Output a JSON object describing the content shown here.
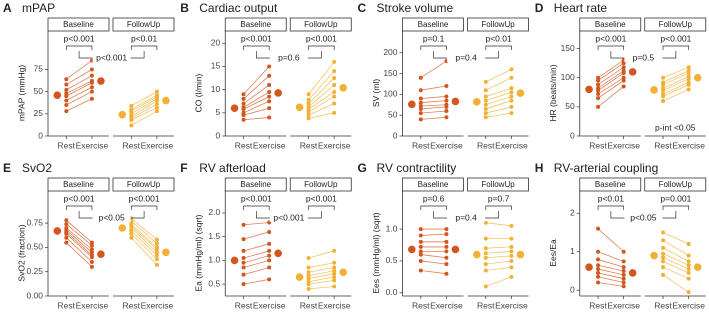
{
  "chart_data": [
    {
      "type": "paired",
      "panel_label": "A",
      "title": "mPAP",
      "ylabel": "mPAP (mmHg)",
      "categories": [
        "Rest",
        "Exercise"
      ],
      "ylim": [
        0,
        115
      ],
      "yticks": [
        0,
        25,
        50,
        75
      ],
      "between": "p<0.001",
      "facets": [
        {
          "name": "Baseline",
          "color": "#d4561f",
          "within": "p<0.001",
          "rest": [
            28,
            35,
            40,
            45,
            48,
            52,
            58,
            64
          ],
          "exercise": [
            42,
            50,
            55,
            60,
            62,
            68,
            75,
            85
          ],
          "means": [
            46,
            62
          ]
        },
        {
          "name": "FollowUp",
          "color": "#f0b136",
          "within": "p<0.01",
          "rest": [
            12,
            18,
            20,
            22,
            25,
            28,
            30,
            34
          ],
          "exercise": [
            28,
            32,
            36,
            40,
            42,
            44,
            46,
            50
          ],
          "means": [
            24,
            40
          ]
        }
      ]
    },
    {
      "type": "paired",
      "panel_label": "B",
      "title": "Cardiac output",
      "ylabel": "CO (l/min)",
      "categories": [
        "Rest",
        "Exercise"
      ],
      "ylim": [
        0,
        22
      ],
      "yticks": [
        0,
        5,
        10,
        15,
        20
      ],
      "between": "p=0.6",
      "facets": [
        {
          "name": "Baseline",
          "color": "#d4561f",
          "within": "p<0.001",
          "rest": [
            3.5,
            4.5,
            5,
            5.8,
            6.2,
            7,
            8,
            9
          ],
          "exercise": [
            4,
            6,
            7.5,
            8.5,
            9.5,
            11,
            13,
            15
          ],
          "means": [
            6,
            9.3
          ]
        },
        {
          "name": "FollowUp",
          "color": "#f0b136",
          "within": "p<0.001",
          "rest": [
            3.8,
            4.5,
            5.2,
            5.8,
            6.3,
            7,
            7.8,
            9
          ],
          "exercise": [
            5,
            7,
            8.5,
            9.5,
            11,
            12.5,
            14,
            16
          ],
          "means": [
            6.2,
            10.4
          ]
        }
      ]
    },
    {
      "type": "paired",
      "panel_label": "C",
      "title": "Stroke volume",
      "ylabel": "SV (ml)",
      "categories": [
        "Rest",
        "Exercise"
      ],
      "ylim": [
        0,
        245
      ],
      "yticks": [
        0,
        50,
        100,
        150,
        200
      ],
      "between": "p=0.4",
      "facets": [
        {
          "name": "Baseline",
          "color": "#d4561f",
          "within": "p=0.1",
          "rest": [
            40,
            55,
            65,
            72,
            80,
            90,
            110,
            140
          ],
          "exercise": [
            45,
            60,
            70,
            75,
            85,
            95,
            120,
            180
          ],
          "means": [
            76,
            83
          ]
        },
        {
          "name": "FollowUp",
          "color": "#f0b136",
          "within": "p<0.01",
          "rest": [
            45,
            55,
            65,
            75,
            85,
            95,
            110,
            130
          ],
          "exercise": [
            55,
            70,
            85,
            95,
            105,
            115,
            140,
            160
          ],
          "means": [
            82,
            103
          ]
        }
      ]
    },
    {
      "type": "paired",
      "panel_label": "D",
      "title": "Heart rate",
      "ylabel": "HR (beats/min)",
      "categories": [
        "Rest",
        "Exercise"
      ],
      "ylim": [
        0,
        175
      ],
      "yticks": [
        0,
        50,
        100,
        150
      ],
      "between": "p=0.5",
      "note": "p-int <0.05",
      "facets": [
        {
          "name": "Baseline",
          "color": "#d4561f",
          "within": "p<0.001",
          "rest": [
            50,
            65,
            72,
            78,
            82,
            88,
            95,
            100
          ],
          "exercise": [
            85,
            95,
            100,
            108,
            112,
            118,
            125,
            130
          ],
          "means": [
            80,
            110
          ]
        },
        {
          "name": "FollowUp",
          "color": "#f0b136",
          "within": "p<0.001",
          "rest": [
            60,
            68,
            72,
            78,
            82,
            88,
            92,
            100
          ],
          "exercise": [
            80,
            88,
            92,
            98,
            102,
            108,
            112,
            118
          ],
          "means": [
            79,
            100
          ]
        }
      ]
    },
    {
      "type": "paired",
      "panel_label": "E",
      "title": "SvO2",
      "ylabel": "SvO2 (fraction)",
      "categories": [
        "Rest",
        "Exercise"
      ],
      "ylim": [
        0,
        1.05
      ],
      "yticks": [
        {
          "value": 0,
          "label": "0.00"
        },
        0.25,
        {
          "value": 0.5,
          "label": "0.50"
        },
        0.75
      ],
      "between": "p<0.05",
      "facets": [
        {
          "name": "Baseline",
          "color": "#d4561f",
          "within": "p<0.001",
          "rest": [
            0.55,
            0.6,
            0.64,
            0.66,
            0.68,
            0.7,
            0.74,
            0.78
          ],
          "exercise": [
            0.3,
            0.35,
            0.4,
            0.42,
            0.45,
            0.48,
            0.52,
            0.55
          ],
          "means": [
            0.67,
            0.43
          ]
        },
        {
          "name": "FollowUp",
          "color": "#f0b136",
          "within": "p<0.001",
          "rest": [
            0.6,
            0.64,
            0.67,
            0.7,
            0.72,
            0.74,
            0.77,
            0.8
          ],
          "exercise": [
            0.32,
            0.38,
            0.42,
            0.45,
            0.48,
            0.5,
            0.54,
            0.58
          ],
          "means": [
            0.7,
            0.45
          ]
        }
      ]
    },
    {
      "type": "paired",
      "panel_label": "F",
      "title": "RV afterload",
      "ylabel": "Ea (mmHg/ml) (sqrt)",
      "categories": [
        "Rest",
        "Exercise"
      ],
      "ylim": [
        0.25,
        2.4
      ],
      "yticks": [
        0.5,
        {
          "value": 1,
          "label": "1.0"
        },
        1.5,
        {
          "value": 2,
          "label": "2.0"
        }
      ],
      "between": "p<0.001",
      "facets": [
        {
          "name": "Baseline",
          "color": "#d4561f",
          "within": "p<0.001",
          "rest": [
            0.5,
            0.7,
            0.85,
            0.95,
            1.05,
            1.2,
            1.45,
            1.75
          ],
          "exercise": [
            0.6,
            0.85,
            1.0,
            1.1,
            1.2,
            1.35,
            1.6,
            1.8
          ],
          "means": [
            1.0,
            1.15
          ]
        },
        {
          "name": "FollowUp",
          "color": "#f0b136",
          "within": "p<0.001",
          "rest": [
            0.4,
            0.5,
            0.55,
            0.62,
            0.68,
            0.75,
            0.85,
            1.05
          ],
          "exercise": [
            0.45,
            0.58,
            0.65,
            0.72,
            0.78,
            0.85,
            0.95,
            1.2
          ],
          "means": [
            0.65,
            0.75
          ]
        }
      ]
    },
    {
      "type": "paired",
      "panel_label": "G",
      "title": "RV contractility",
      "ylabel": "Ees (mmHg/ml) (sqrt)",
      "categories": [
        "Rest",
        "Exercise"
      ],
      "ylim": [
        -0.05,
        1.55
      ],
      "yticks": [
        {
          "value": 0,
          "label": "0.0"
        },
        0.5,
        {
          "value": 1,
          "label": "1.0"
        }
      ],
      "between": "p=0.4",
      "facets": [
        {
          "name": "Baseline",
          "color": "#d4561f",
          "within": "p=0.6",
          "rest": [
            0.35,
            0.5,
            0.6,
            0.65,
            0.72,
            0.8,
            0.9,
            1.0
          ],
          "exercise": [
            0.3,
            0.45,
            0.55,
            0.65,
            0.72,
            0.8,
            0.92,
            1.0
          ],
          "means": [
            0.68,
            0.68
          ]
        },
        {
          "name": "FollowUp",
          "color": "#f0b136",
          "within": "p=0.7",
          "rest": [
            0.1,
            0.35,
            0.45,
            0.55,
            0.62,
            0.7,
            0.85,
            1.1
          ],
          "exercise": [
            0.25,
            0.4,
            0.5,
            0.58,
            0.65,
            0.72,
            0.85,
            1.05
          ],
          "means": [
            0.6,
            0.6
          ]
        }
      ]
    },
    {
      "type": "paired",
      "panel_label": "H",
      "title": "RV-arterial coupling",
      "ylabel": "Ees/Ea",
      "categories": [
        "Rest",
        "Exercise"
      ],
      "ylim": [
        -0.15,
        2.5
      ],
      "yticks": [
        0,
        1,
        2
      ],
      "between": "p<0.05",
      "facets": [
        {
          "name": "Baseline",
          "color": "#d4561f",
          "within": "p<0.01",
          "rest": [
            0.2,
            0.35,
            0.45,
            0.55,
            0.65,
            0.8,
            1.0,
            1.6
          ],
          "exercise": [
            0.1,
            0.2,
            0.3,
            0.4,
            0.5,
            0.6,
            0.75,
            1.0
          ],
          "means": [
            0.6,
            0.45
          ]
        },
        {
          "name": "FollowUp",
          "color": "#f0b136",
          "within": "p=0.001",
          "rest": [
            0.4,
            0.6,
            0.75,
            0.85,
            0.95,
            1.1,
            1.3,
            1.5
          ],
          "exercise": [
            -0.05,
            0.3,
            0.45,
            0.55,
            0.65,
            0.75,
            0.9,
            1.2
          ],
          "means": [
            0.9,
            0.6
          ]
        }
      ]
    }
  ]
}
